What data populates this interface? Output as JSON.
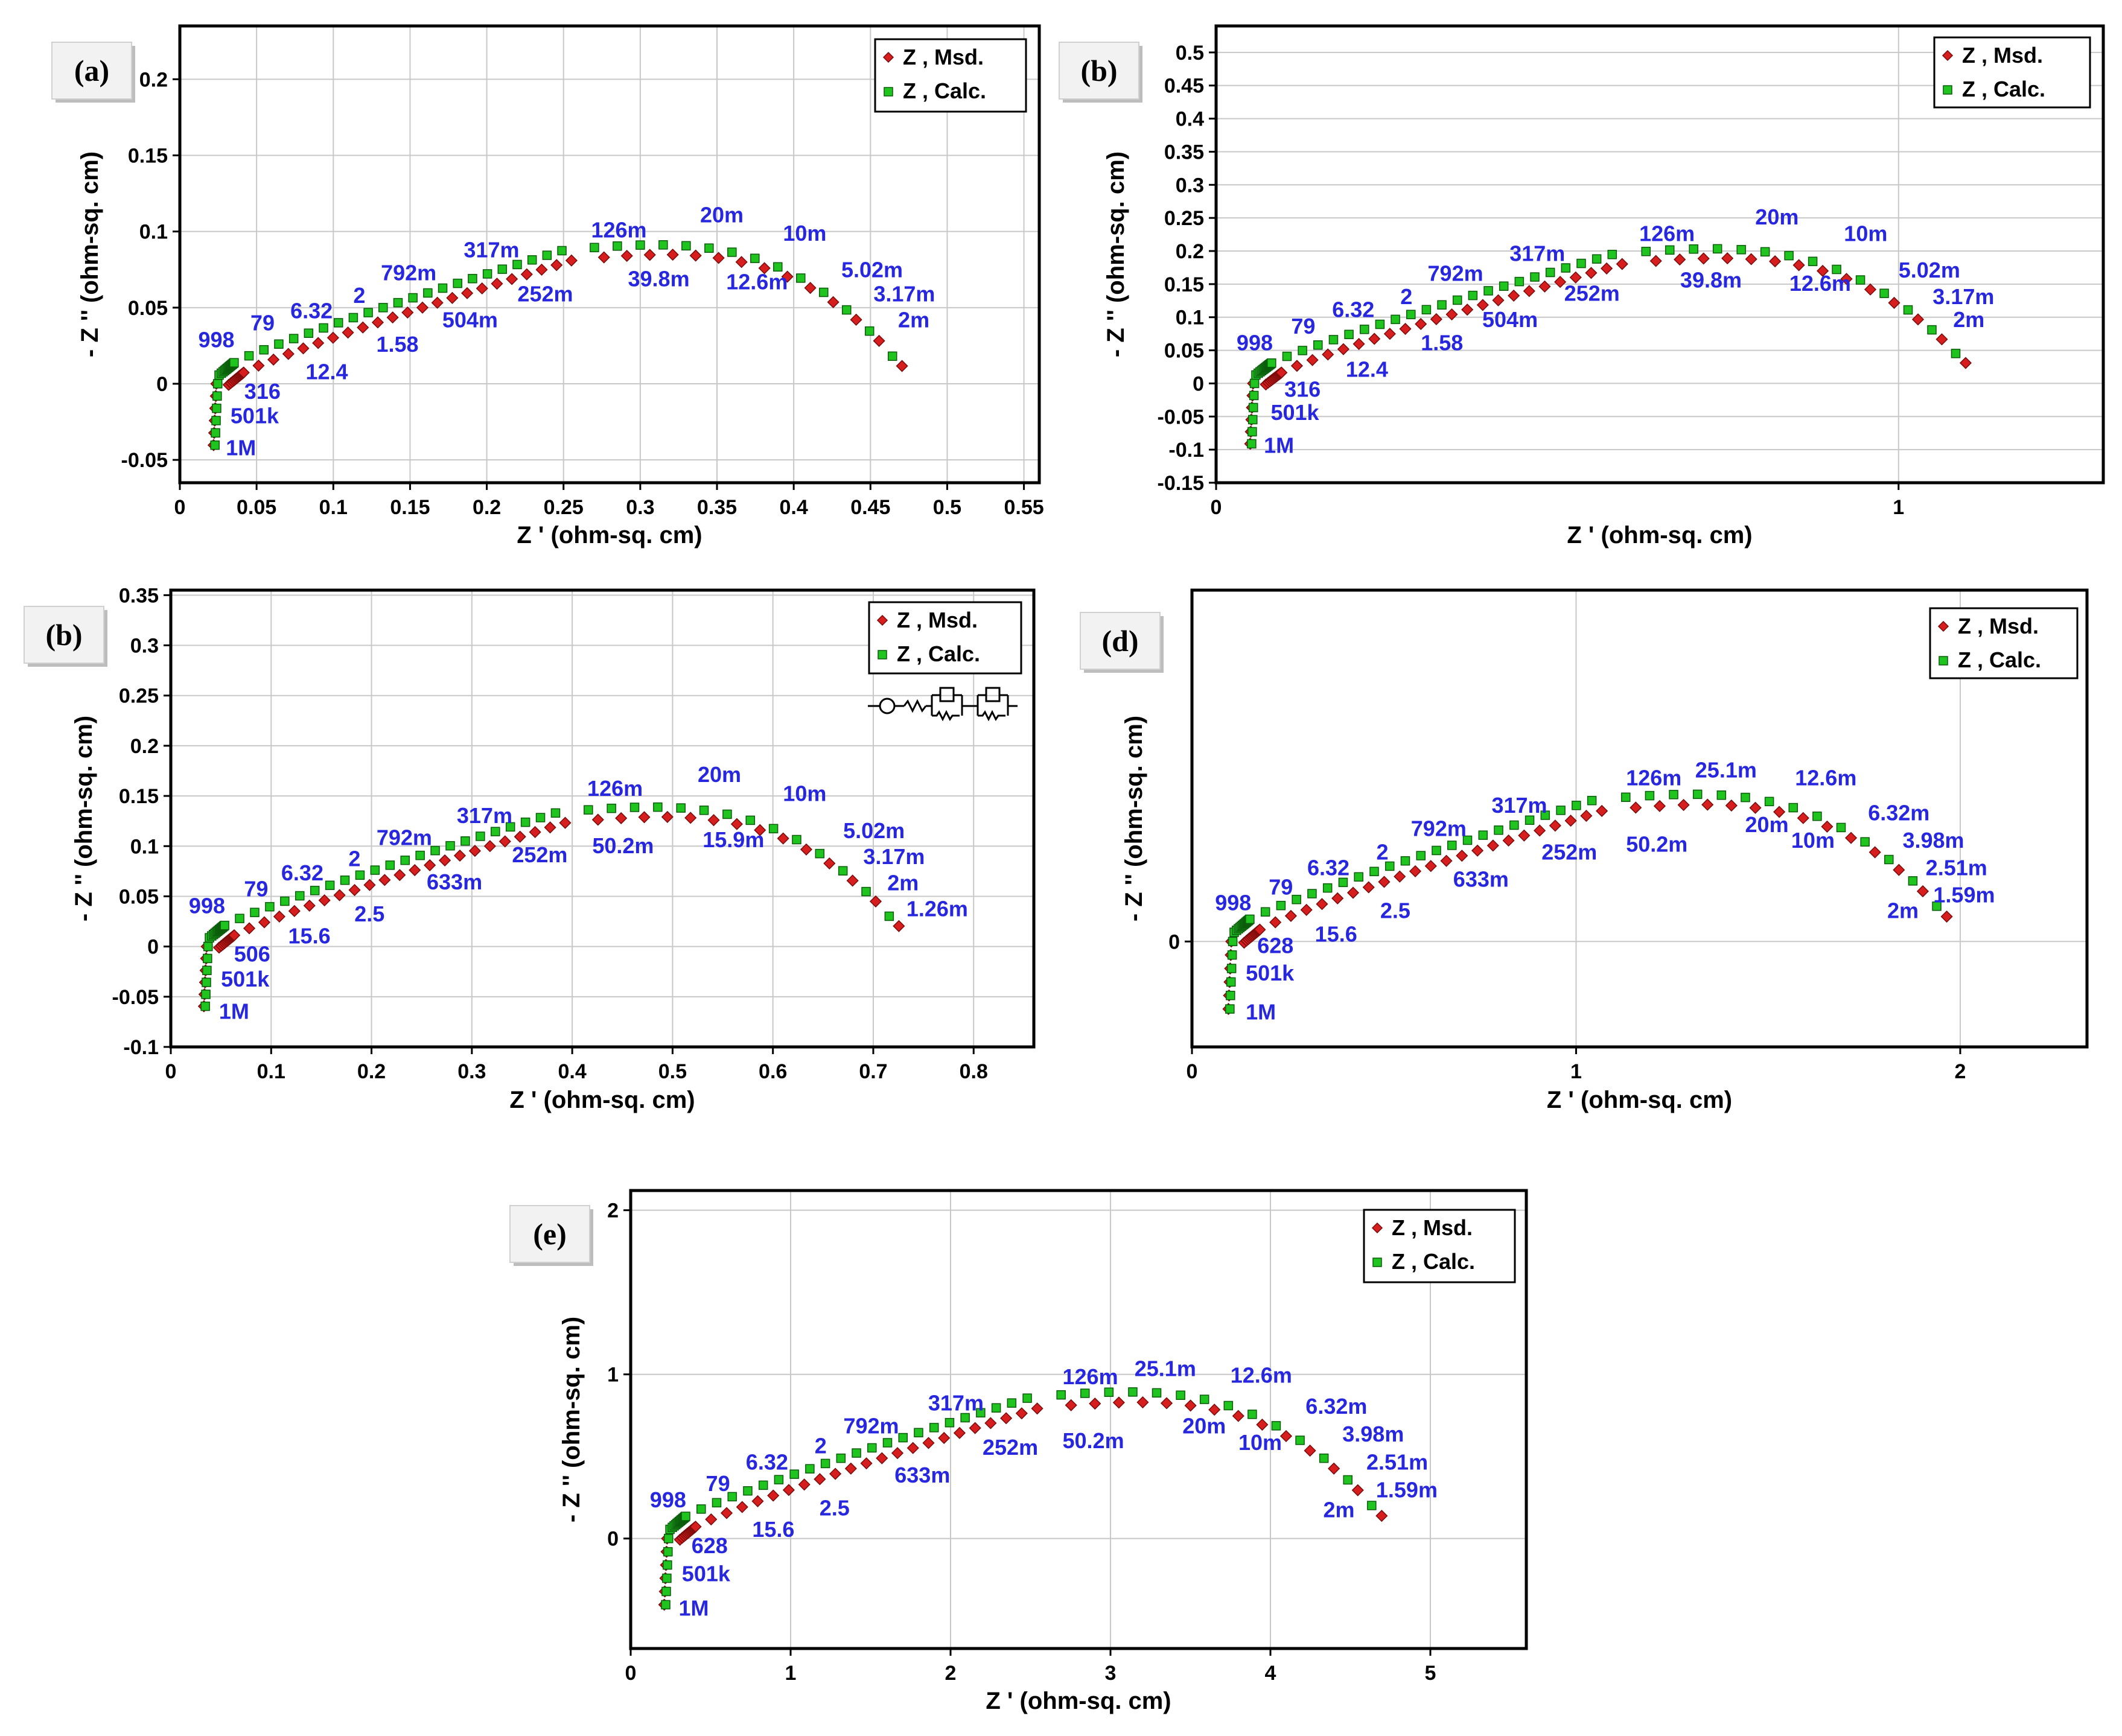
{
  "legend": {
    "measured": "Z ,  Msd.",
    "calculated": "Z ,  Calc."
  },
  "colors": {
    "measured": "#d61e1e",
    "calculated": "#1fc41f",
    "labels": "#2727e0",
    "grid": "#c8c8c8"
  },
  "chart_data": [
    {
      "type": "scatter",
      "panel_label": "(a)",
      "xlabel": "Z '  (ohm-sq. cm)",
      "ylabel": "- Z ''  (ohm-sq. cm)",
      "xlim": [
        0,
        0.56
      ],
      "ylim": [
        -0.065,
        0.235
      ],
      "xticks": [
        0,
        0.05,
        0.1,
        0.15,
        0.2,
        0.25,
        0.3,
        0.35,
        0.4,
        0.45,
        0.5,
        0.55
      ],
      "xtick_labels": [
        "0",
        "0.05",
        "0.1",
        "0.15",
        "0.2",
        "0.25",
        "0.3",
        "0.35",
        "0.4",
        "0.45",
        "0.5",
        "0.55"
      ],
      "yticks": [
        -0.05,
        0,
        0.05,
        0.1,
        0.15,
        0.2
      ],
      "ytick_labels": [
        "-0.05",
        "0",
        "0.05",
        "0.1",
        "0.15",
        "0.2"
      ],
      "curve": {
        "r0": 0.022,
        "rmax": 0.467,
        "peak": 0.092,
        "tail_low": -0.042,
        "end_y": 0.018
      },
      "circuit": false,
      "annotations": [
        {
          "text": "998",
          "x": 0.012,
          "y": 0.024
        },
        {
          "text": "79",
          "x": 0.046,
          "y": 0.035
        },
        {
          "text": "6.32",
          "x": 0.072,
          "y": 0.043
        },
        {
          "text": "2",
          "x": 0.113,
          "y": 0.053
        },
        {
          "text": "792m",
          "x": 0.131,
          "y": 0.068
        },
        {
          "text": "317m",
          "x": 0.185,
          "y": 0.083
        },
        {
          "text": "126m",
          "x": 0.268,
          "y": 0.096
        },
        {
          "text": "20m",
          "x": 0.339,
          "y": 0.106
        },
        {
          "text": "10m",
          "x": 0.393,
          "y": 0.094
        },
        {
          "text": "5.02m",
          "x": 0.431,
          "y": 0.07
        },
        {
          "text": "3.17m",
          "x": 0.452,
          "y": 0.054
        },
        {
          "text": "2m",
          "x": 0.468,
          "y": 0.037
        },
        {
          "text": "39.8m",
          "x": 0.292,
          "y": 0.064
        },
        {
          "text": "12.6m",
          "x": 0.356,
          "y": 0.062
        },
        {
          "text": "252m",
          "x": 0.22,
          "y": 0.054
        },
        {
          "text": "504m",
          "x": 0.171,
          "y": 0.037
        },
        {
          "text": "1.58",
          "x": 0.128,
          "y": 0.021
        },
        {
          "text": "12.4",
          "x": 0.082,
          "y": 0.003
        },
        {
          "text": "316",
          "x": 0.042,
          "y": -0.01
        },
        {
          "text": "501k",
          "x": 0.033,
          "y": -0.026
        },
        {
          "text": "1M",
          "x": 0.03,
          "y": -0.047
        }
      ]
    },
    {
      "type": "scatter",
      "panel_label": "(b)",
      "xlabel": "Z '  (ohm-sq. cm)",
      "ylabel": "- Z ''  (ohm-sq. cm)",
      "xlim": [
        0,
        1.3
      ],
      "ylim": [
        -0.15,
        0.54
      ],
      "xticks": [
        0,
        1
      ],
      "xtick_labels": [
        "0",
        "1"
      ],
      "yticks": [
        -0.15,
        -0.1,
        -0.05,
        0,
        0.05,
        0.1,
        0.15,
        0.2,
        0.25,
        0.3,
        0.35,
        0.4,
        0.45,
        0.5
      ],
      "ytick_labels": [
        "-0.15",
        "-0.1",
        "-0.05",
        "0",
        "0.05",
        "0.1",
        "0.15",
        "0.2",
        "0.25",
        "0.3",
        "0.35",
        "0.4",
        "0.45",
        "0.5"
      ],
      "curve": {
        "r0": 0.05,
        "rmax": 1.09,
        "peak": 0.205,
        "tail_low": -0.095,
        "end_y": 0.045
      },
      "circuit": false,
      "annotations": [
        {
          "text": "998",
          "x": 0.03,
          "y": 0.05
        },
        {
          "text": "79",
          "x": 0.11,
          "y": 0.075
        },
        {
          "text": "6.32",
          "x": 0.17,
          "y": 0.1
        },
        {
          "text": "2",
          "x": 0.27,
          "y": 0.12
        },
        {
          "text": "792m",
          "x": 0.31,
          "y": 0.155
        },
        {
          "text": "317m",
          "x": 0.43,
          "y": 0.185
        },
        {
          "text": "126m",
          "x": 0.62,
          "y": 0.215
        },
        {
          "text": "20m",
          "x": 0.79,
          "y": 0.24
        },
        {
          "text": "10m",
          "x": 0.92,
          "y": 0.215
        },
        {
          "text": "5.02m",
          "x": 1.0,
          "y": 0.16
        },
        {
          "text": "3.17m",
          "x": 1.05,
          "y": 0.12
        },
        {
          "text": "2m",
          "x": 1.08,
          "y": 0.085
        },
        {
          "text": "39.8m",
          "x": 0.68,
          "y": 0.145
        },
        {
          "text": "12.6m",
          "x": 0.84,
          "y": 0.14
        },
        {
          "text": "252m",
          "x": 0.51,
          "y": 0.125
        },
        {
          "text": "504m",
          "x": 0.39,
          "y": 0.085
        },
        {
          "text": "1.58",
          "x": 0.3,
          "y": 0.05
        },
        {
          "text": "12.4",
          "x": 0.19,
          "y": 0.01
        },
        {
          "text": "316",
          "x": 0.1,
          "y": -0.02
        },
        {
          "text": "501k",
          "x": 0.08,
          "y": -0.055
        },
        {
          "text": "1M",
          "x": 0.07,
          "y": -0.105
        }
      ]
    },
    {
      "type": "scatter",
      "panel_label": "(b)",
      "xlabel": "Z '  (ohm-sq. cm)",
      "ylabel": "- Z ''  (ohm-sq. cm)",
      "xlim": [
        0,
        0.86
      ],
      "ylim": [
        -0.1,
        0.355
      ],
      "xticks": [
        0,
        0.1,
        0.2,
        0.3,
        0.4,
        0.5,
        0.6,
        0.7,
        0.8
      ],
      "xtick_labels": [
        "0",
        "0.1",
        "0.2",
        "0.3",
        "0.4",
        "0.5",
        "0.6",
        "0.7",
        "0.8"
      ],
      "yticks": [
        -0.1,
        -0.05,
        0,
        0.05,
        0.1,
        0.15,
        0.2,
        0.25,
        0.3,
        0.35
      ],
      "ytick_labels": [
        "-0.1",
        "-0.05",
        "0",
        "0.05",
        "0.1",
        "0.15",
        "0.2",
        "0.25",
        "0.3",
        "0.35"
      ],
      "curve": {
        "r0": 0.033,
        "rmax": 0.72,
        "peak": 0.14,
        "tail_low": -0.062,
        "end_y": 0.03
      },
      "circuit": true,
      "annotations": [
        {
          "text": "998",
          "x": 0.018,
          "y": 0.033
        },
        {
          "text": "79",
          "x": 0.073,
          "y": 0.05
        },
        {
          "text": "6.32",
          "x": 0.11,
          "y": 0.066
        },
        {
          "text": "2",
          "x": 0.177,
          "y": 0.08
        },
        {
          "text": "792m",
          "x": 0.205,
          "y": 0.101
        },
        {
          "text": "317m",
          "x": 0.285,
          "y": 0.123
        },
        {
          "text": "126m",
          "x": 0.415,
          "y": 0.15
        },
        {
          "text": "20m",
          "x": 0.525,
          "y": 0.164
        },
        {
          "text": "10m",
          "x": 0.61,
          "y": 0.145
        },
        {
          "text": "5.02m",
          "x": 0.67,
          "y": 0.108
        },
        {
          "text": "3.17m",
          "x": 0.69,
          "y": 0.082
        },
        {
          "text": "2m",
          "x": 0.714,
          "y": 0.056
        },
        {
          "text": "1.26m",
          "x": 0.733,
          "y": 0.03
        },
        {
          "text": "50.2m",
          "x": 0.42,
          "y": 0.093
        },
        {
          "text": "15.9m",
          "x": 0.53,
          "y": 0.099
        },
        {
          "text": "252m",
          "x": 0.34,
          "y": 0.084
        },
        {
          "text": "633m",
          "x": 0.255,
          "y": 0.057
        },
        {
          "text": "2.5",
          "x": 0.183,
          "y": 0.025
        },
        {
          "text": "15.6",
          "x": 0.117,
          "y": 0.003
        },
        {
          "text": "506",
          "x": 0.063,
          "y": -0.015
        },
        {
          "text": "501k",
          "x": 0.05,
          "y": -0.04
        },
        {
          "text": "1M",
          "x": 0.048,
          "y": -0.072
        }
      ]
    },
    {
      "type": "scatter",
      "panel_label": "(d)",
      "xlabel": "Z '  (ohm-sq. cm)",
      "ylabel": "- Z ''  (ohm-sq. cm)",
      "xlim": [
        0,
        2.33
      ],
      "ylim": [
        -0.27,
        0.9
      ],
      "xticks": [
        0,
        1,
        2
      ],
      "xtick_labels": [
        "0",
        "1",
        "2"
      ],
      "yticks": [
        0
      ],
      "ytick_labels": [
        "0"
      ],
      "curve": {
        "r0": 0.095,
        "rmax": 1.95,
        "peak": 0.38,
        "tail_low": -0.18,
        "end_y": 0.09
      },
      "circuit": false,
      "annotations": [
        {
          "text": "998",
          "x": 0.06,
          "y": 0.08
        },
        {
          "text": "79",
          "x": 0.2,
          "y": 0.12
        },
        {
          "text": "6.32",
          "x": 0.3,
          "y": 0.17
        },
        {
          "text": "2",
          "x": 0.48,
          "y": 0.21
        },
        {
          "text": "792m",
          "x": 0.57,
          "y": 0.27
        },
        {
          "text": "317m",
          "x": 0.78,
          "y": 0.33
        },
        {
          "text": "126m",
          "x": 1.13,
          "y": 0.4
        },
        {
          "text": "25.1m",
          "x": 1.31,
          "y": 0.42
        },
        {
          "text": "12.6m",
          "x": 1.57,
          "y": 0.4
        },
        {
          "text": "6.32m",
          "x": 1.76,
          "y": 0.31
        },
        {
          "text": "3.98m",
          "x": 1.85,
          "y": 0.24
        },
        {
          "text": "2.51m",
          "x": 1.91,
          "y": 0.17
        },
        {
          "text": "1.59m",
          "x": 1.93,
          "y": 0.1
        },
        {
          "text": "20m",
          "x": 1.44,
          "y": 0.28
        },
        {
          "text": "10m",
          "x": 1.56,
          "y": 0.24
        },
        {
          "text": "2m",
          "x": 1.81,
          "y": 0.06
        },
        {
          "text": "50.2m",
          "x": 1.13,
          "y": 0.23
        },
        {
          "text": "252m",
          "x": 0.91,
          "y": 0.21
        },
        {
          "text": "633m",
          "x": 0.68,
          "y": 0.14
        },
        {
          "text": "2.5",
          "x": 0.49,
          "y": 0.06
        },
        {
          "text": "15.6",
          "x": 0.32,
          "y": 0.0
        },
        {
          "text": "628",
          "x": 0.17,
          "y": -0.03
        },
        {
          "text": "501k",
          "x": 0.14,
          "y": -0.1
        },
        {
          "text": "1M",
          "x": 0.14,
          "y": -0.2
        }
      ]
    },
    {
      "type": "scatter",
      "panel_label": "(e)",
      "xlabel": "Z '  (ohm-sq. cm)",
      "ylabel": "- Z ''  (ohm-sq. cm)",
      "xlim": [
        0,
        5.6
      ],
      "ylim": [
        -0.67,
        2.12
      ],
      "xticks": [
        0,
        1,
        2,
        3,
        4,
        5
      ],
      "xtick_labels": [
        "0",
        "1",
        "2",
        "3",
        "4",
        "5"
      ],
      "yticks": [
        0,
        1,
        2
      ],
      "ytick_labels": [
        "0",
        "1",
        "2"
      ],
      "curve": {
        "r0": 0.21,
        "rmax": 4.66,
        "peak": 0.9,
        "tail_low": -0.42,
        "end_y": 0.2
      },
      "circuit": false,
      "annotations": [
        {
          "text": "998",
          "x": 0.12,
          "y": 0.19
        },
        {
          "text": "79",
          "x": 0.47,
          "y": 0.29
        },
        {
          "text": "6.32",
          "x": 0.72,
          "y": 0.42
        },
        {
          "text": "2",
          "x": 1.15,
          "y": 0.52
        },
        {
          "text": "792m",
          "x": 1.33,
          "y": 0.64
        },
        {
          "text": "317m",
          "x": 1.86,
          "y": 0.78
        },
        {
          "text": "126m",
          "x": 2.7,
          "y": 0.94
        },
        {
          "text": "25.1m",
          "x": 3.15,
          "y": 0.99
        },
        {
          "text": "12.6m",
          "x": 3.75,
          "y": 0.95
        },
        {
          "text": "6.32m",
          "x": 4.22,
          "y": 0.76
        },
        {
          "text": "3.98m",
          "x": 4.45,
          "y": 0.59
        },
        {
          "text": "2.51m",
          "x": 4.6,
          "y": 0.42
        },
        {
          "text": "1.59m",
          "x": 4.66,
          "y": 0.25
        },
        {
          "text": "20m",
          "x": 3.45,
          "y": 0.64
        },
        {
          "text": "10m",
          "x": 3.8,
          "y": 0.54
        },
        {
          "text": "2m",
          "x": 4.33,
          "y": 0.13
        },
        {
          "text": "50.2m",
          "x": 2.7,
          "y": 0.55
        },
        {
          "text": "252m",
          "x": 2.2,
          "y": 0.51
        },
        {
          "text": "633m",
          "x": 1.65,
          "y": 0.34
        },
        {
          "text": "2.5",
          "x": 1.18,
          "y": 0.14
        },
        {
          "text": "15.6",
          "x": 0.76,
          "y": 0.01
        },
        {
          "text": "628",
          "x": 0.38,
          "y": -0.09
        },
        {
          "text": "501k",
          "x": 0.32,
          "y": -0.26
        },
        {
          "text": "1M",
          "x": 0.3,
          "y": -0.47
        }
      ]
    }
  ]
}
